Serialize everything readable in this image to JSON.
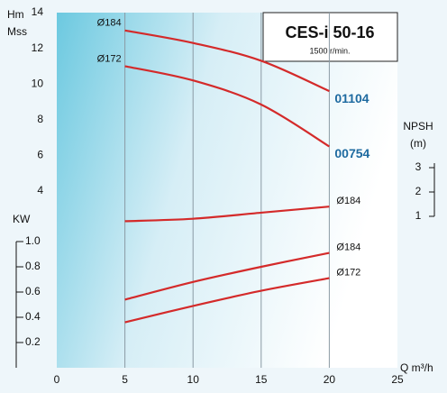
{
  "chart_data": [
    {
      "type": "line",
      "title": "CES-i 50-16",
      "subtitle": "1500 r/min.",
      "ylabel": [
        "Hm",
        "Mss"
      ],
      "xlabel": "Q m³/h",
      "x": [
        5,
        10,
        15,
        20
      ],
      "xlim": [
        0,
        25
      ],
      "xticks": [
        0,
        5,
        10,
        15,
        20,
        25
      ],
      "ylim": [
        4,
        14
      ],
      "yticks": [
        4,
        6,
        8,
        10,
        12,
        14
      ],
      "series": [
        {
          "name": "Ø184",
          "color": "#d42a2a",
          "values": [
            13.0,
            12.3,
            11.3,
            9.6
          ]
        },
        {
          "name": "Ø172",
          "color": "#d42a2a",
          "values": [
            11.0,
            10.2,
            8.85,
            6.5
          ]
        }
      ],
      "annotations": [
        "01104",
        "00754"
      ],
      "annotation_color": "#1e6aa0"
    },
    {
      "type": "line",
      "ylabel": [
        "NPSH",
        "(m)"
      ],
      "x": [
        5,
        10,
        15,
        20
      ],
      "ylim": [
        1,
        3
      ],
      "yticks": [
        1,
        2,
        3
      ],
      "series": [
        {
          "name": "Ø184",
          "color": "#d42a2a",
          "values": [
            0.8,
            0.9,
            1.15,
            1.4
          ]
        }
      ]
    },
    {
      "type": "line",
      "ylabel": [
        "KW"
      ],
      "x": [
        5,
        10,
        15,
        20
      ],
      "ylim": [
        0,
        1
      ],
      "yticks": [
        0.2,
        0.4,
        0.6,
        0.8,
        {
          "value": 1,
          "label": "1.0"
        }
      ],
      "series": [
        {
          "name": "Ø184",
          "color": "#d42a2a",
          "values": [
            0.54,
            0.68,
            0.8,
            0.91
          ]
        },
        {
          "name": "Ø172",
          "color": "#d42a2a",
          "values": [
            0.36,
            0.49,
            0.61,
            0.71
          ]
        }
      ]
    }
  ]
}
